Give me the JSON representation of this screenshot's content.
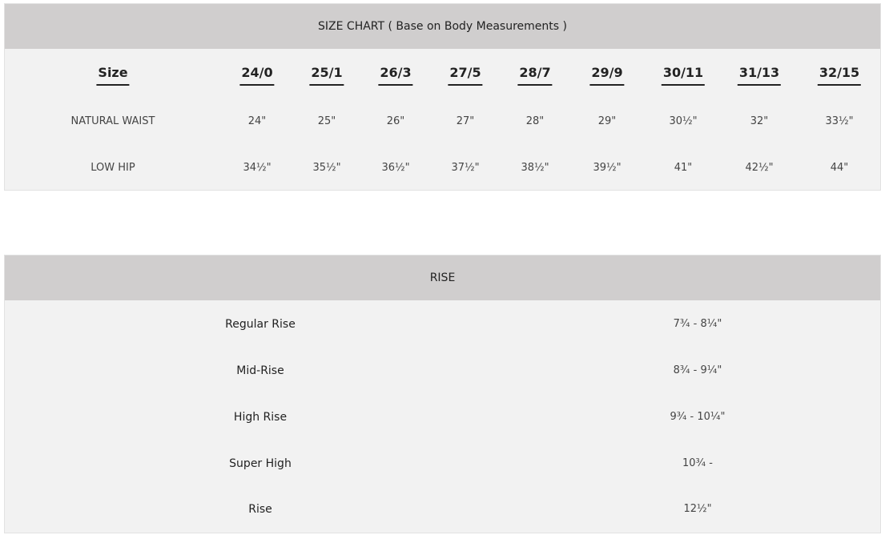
{
  "size_chart": {
    "title": "SIZE CHART ( Base on Body Measurements )",
    "size_label": "Size",
    "sizes": [
      "24/0",
      "25/1",
      "26/3",
      "27/5",
      "28/7",
      "29/9",
      "30/11",
      "31/13",
      "32/15"
    ],
    "rows": [
      {
        "label": "NATURAL WAIST",
        "values": [
          "24\"",
          "25\"",
          "26\"",
          "27\"",
          "28\"",
          "29\"",
          "30½\"",
          "32\"",
          "33½\""
        ]
      },
      {
        "label": "LOW HIP",
        "values": [
          "34½\"",
          "35½\"",
          "36½\"",
          "37½\"",
          "38½\"",
          "39½\"",
          "41\"",
          "42½\"",
          "44\""
        ]
      }
    ]
  },
  "rise": {
    "title": "RISE",
    "rows": [
      {
        "label": "Regular Rise",
        "value": "7¾ - 8¼\""
      },
      {
        "label": "Mid-Rise",
        "value": "8¾ - 9¼\""
      },
      {
        "label": "High Rise",
        "value": "9¾ - 10¼\""
      },
      {
        "label": "Super High",
        "value": "10¾ -"
      },
      {
        "label": "Rise",
        "value": "12½\""
      }
    ]
  },
  "colors": {
    "header_bg": "#d0cece",
    "body_bg": "#f2f2f2"
  }
}
